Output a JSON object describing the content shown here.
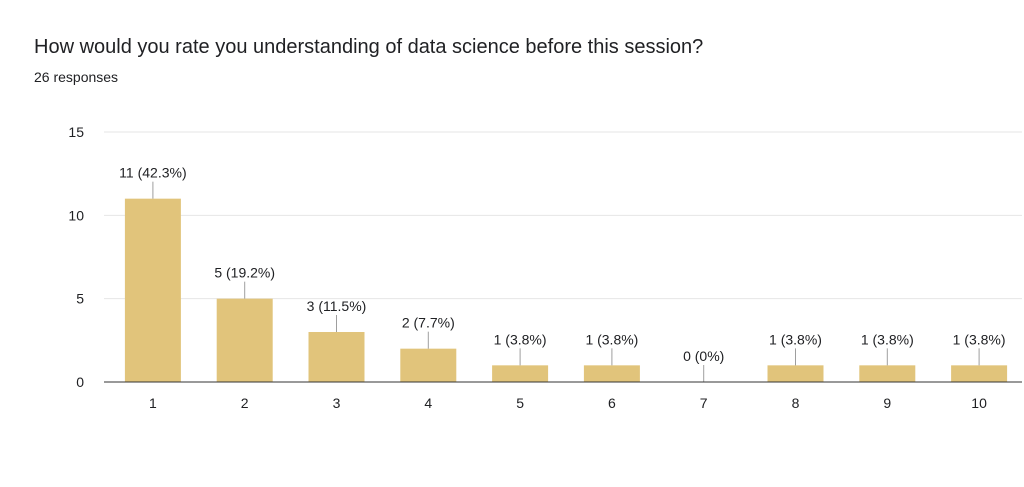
{
  "question": {
    "title": "How would you rate you understanding of data science before this session?",
    "responses": "26 responses"
  },
  "colors": {
    "bar": "#E1C47B",
    "grid": "#E6E6E6",
    "axis": "#333333",
    "leader": "#9E9E9E"
  },
  "chart_data": {
    "type": "bar",
    "title": "How would you rate you understanding of data science before this session?",
    "categories": [
      "1",
      "2",
      "3",
      "4",
      "5",
      "6",
      "7",
      "8",
      "9",
      "10"
    ],
    "values": [
      11,
      5,
      3,
      2,
      1,
      1,
      0,
      1,
      1,
      1
    ],
    "data_labels": [
      "11 (42.3%)",
      "5 (19.2%)",
      "3 (11.5%)",
      "2 (7.7%)",
      "1 (3.8%)",
      "1 (3.8%)",
      "0 (0%)",
      "1 (3.8%)",
      "1 (3.8%)",
      "1 (3.8%)"
    ],
    "ylim": [
      0,
      15
    ],
    "yticks": [
      0,
      5,
      10,
      15
    ],
    "xlabel": "",
    "ylabel": "",
    "grid": true,
    "legend": "none"
  }
}
